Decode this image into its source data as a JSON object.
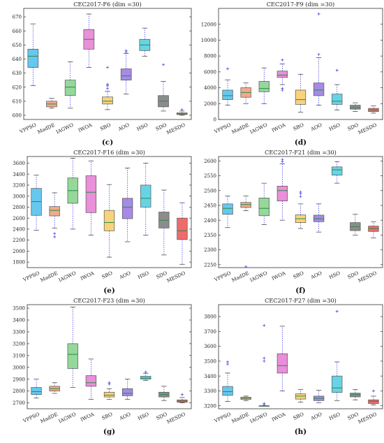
{
  "figure": {
    "colors": {
      "VPPSO": "#67c7ee",
      "MadDE": "#f2a98a",
      "IAGWO": "#95d89a",
      "IWOA": "#ea8fd9",
      "SBO": "#f7d37b",
      "AOO": "#a68ae6",
      "HSO": "#67d4e6",
      "SDO": "#8c8c8c",
      "MESDO": "#ef6b6b",
      "median": "#2a8a4a",
      "whisker": "#4a4ae0",
      "outlier": "#4a4ae0"
    }
  },
  "chart_data": [
    {
      "type": "box",
      "title": "CEC2017-F6 (dim =30)",
      "panel_label": "(c)",
      "categories": [
        "VPPSO",
        "MadDE",
        "IAGWO",
        "IWOA",
        "SBO",
        "AOO",
        "HSO",
        "SDO",
        "MESDO"
      ],
      "ylim": [
        597,
        676
      ],
      "yticks": [
        600,
        610,
        620,
        630,
        640,
        650,
        660,
        670
      ],
      "boxes": [
        {
          "min": 621,
          "q1": 634,
          "median": 642,
          "q3": 647,
          "max": 665,
          "outliers": []
        },
        {
          "min": 605,
          "q1": 606,
          "median": 608,
          "q3": 610,
          "max": 612,
          "outliers": []
        },
        {
          "min": 605,
          "q1": 614,
          "median": 620,
          "q3": 625,
          "max": 638,
          "outliers": []
        },
        {
          "min": 634,
          "q1": 647,
          "median": 654,
          "q3": 661,
          "max": 672,
          "outliers": []
        },
        {
          "min": 604,
          "q1": 608,
          "median": 610,
          "q3": 613,
          "max": 617,
          "outliers": [
            619,
            621,
            622,
            634
          ]
        },
        {
          "min": 615,
          "q1": 625,
          "median": 628,
          "q3": 633,
          "max": 644,
          "outliers": [
            645,
            646
          ]
        },
        {
          "min": 642,
          "q1": 646,
          "median": 650,
          "q3": 654,
          "max": 662,
          "outliers": []
        },
        {
          "min": 603,
          "q1": 606,
          "median": 610,
          "q3": 614,
          "max": 624,
          "outliers": [
            636
          ]
        },
        {
          "min": 600,
          "q1": 600.5,
          "median": 601,
          "q3": 601.7,
          "max": 603,
          "outliers": [
            604
          ]
        }
      ]
    },
    {
      "type": "box",
      "title": "CEC2017-F9 (dim =30)",
      "panel_label": "(d)",
      "categories": [
        "VPPSO",
        "MadDE",
        "IAGWO",
        "IWOA",
        "SBO",
        "AOO",
        "HSO",
        "SDO",
        "MESDO"
      ],
      "ylim": [
        0,
        14000
      ],
      "yticks": [
        0,
        2000,
        4000,
        6000,
        8000,
        10000,
        12000
      ],
      "boxes": [
        {
          "min": 1800,
          "q1": 2500,
          "median": 3000,
          "q3": 3700,
          "max": 5000,
          "outliers": [
            6400
          ]
        },
        {
          "min": 2000,
          "q1": 2800,
          "median": 3400,
          "q3": 4000,
          "max": 4600,
          "outliers": []
        },
        {
          "min": 2000,
          "q1": 3500,
          "median": 3900,
          "q3": 4800,
          "max": 6500,
          "outliers": []
        },
        {
          "min": 4400,
          "q1": 5300,
          "median": 5600,
          "q3": 6100,
          "max": 7000,
          "outliers": [
            3700,
            3900,
            7500
          ]
        },
        {
          "min": 900,
          "q1": 1900,
          "median": 2500,
          "q3": 3700,
          "max": 5700,
          "outliers": []
        },
        {
          "min": 1800,
          "q1": 3000,
          "median": 3700,
          "q3": 4600,
          "max": 7800,
          "outliers": [
            8200,
            13300
          ]
        },
        {
          "min": 1200,
          "q1": 1900,
          "median": 2300,
          "q3": 3200,
          "max": 4400,
          "outliers": [
            6200
          ]
        },
        {
          "min": 1000,
          "q1": 1300,
          "median": 1500,
          "q3": 1800,
          "max": 2100,
          "outliers": []
        },
        {
          "min": 800,
          "q1": 1000,
          "median": 1200,
          "q3": 1400,
          "max": 1700,
          "outliers": []
        }
      ]
    },
    {
      "type": "box",
      "title": "CEC2017-F16 (dim =30)",
      "panel_label": "(e)",
      "categories": [
        "VPPSO",
        "MadDE",
        "IAGWO",
        "IWOA",
        "SBO",
        "AOO",
        "HSO",
        "SDO",
        "MESDO"
      ],
      "ylim": [
        1700,
        3720
      ],
      "yticks": [
        1800,
        2000,
        2200,
        2400,
        2600,
        2800,
        3000,
        3200,
        3400,
        3600
      ],
      "boxes": [
        {
          "min": 2380,
          "q1": 2650,
          "median": 2900,
          "q3": 3140,
          "max": 3380,
          "outliers": []
        },
        {
          "min": 2420,
          "q1": 2640,
          "median": 2740,
          "q3": 2810,
          "max": 3060,
          "outliers": [
            2260,
            2320
          ]
        },
        {
          "min": 2400,
          "q1": 2870,
          "median": 3100,
          "q3": 3330,
          "max": 3690,
          "outliers": []
        },
        {
          "min": 2290,
          "q1": 2700,
          "median": 3070,
          "q3": 3370,
          "max": 3640,
          "outliers": []
        },
        {
          "min": 1890,
          "q1": 2370,
          "median": 2520,
          "q3": 2740,
          "max": 3210,
          "outliers": []
        },
        {
          "min": 2170,
          "q1": 2590,
          "median": 2800,
          "q3": 2960,
          "max": 3510,
          "outliers": []
        },
        {
          "min": 2290,
          "q1": 2800,
          "median": 2960,
          "q3": 3200,
          "max": 3600,
          "outliers": []
        },
        {
          "min": 1930,
          "q1": 2420,
          "median": 2560,
          "q3": 2710,
          "max": 3110,
          "outliers": []
        },
        {
          "min": 1760,
          "q1": 2210,
          "median": 2370,
          "q3": 2600,
          "max": 2880,
          "outliers": []
        }
      ]
    },
    {
      "type": "box",
      "title": "CEC2017-F21 (dim =30)",
      "panel_label": "(f)",
      "categories": [
        "VPPSO",
        "MadDE",
        "IAGWO",
        "IWOA",
        "SBO",
        "AOO",
        "HSO",
        "SDO",
        "MESDO"
      ],
      "ylim": [
        2240,
        2615
      ],
      "yticks": [
        2250,
        2300,
        2350,
        2400,
        2450,
        2500,
        2550,
        2600
      ],
      "boxes": [
        {
          "min": 2375,
          "q1": 2420,
          "median": 2440,
          "q3": 2455,
          "max": 2482,
          "outliers": []
        },
        {
          "min": 2432,
          "q1": 2443,
          "median": 2453,
          "q3": 2460,
          "max": 2482,
          "outliers": [
            2243
          ]
        },
        {
          "min": 2385,
          "q1": 2415,
          "median": 2440,
          "q3": 2475,
          "max": 2525,
          "outliers": []
        },
        {
          "min": 2400,
          "q1": 2465,
          "median": 2500,
          "q3": 2515,
          "max": 2590,
          "outliers": [
            2598,
            2605
          ]
        },
        {
          "min": 2372,
          "q1": 2392,
          "median": 2405,
          "q3": 2418,
          "max": 2455,
          "outliers": [
            2480,
            2490,
            2495
          ]
        },
        {
          "min": 2360,
          "q1": 2395,
          "median": 2405,
          "q3": 2417,
          "max": 2455,
          "outliers": []
        },
        {
          "min": 2525,
          "q1": 2552,
          "median": 2570,
          "q3": 2580,
          "max": 2598,
          "outliers": []
        },
        {
          "min": 2350,
          "q1": 2365,
          "median": 2378,
          "q3": 2392,
          "max": 2420,
          "outliers": []
        },
        {
          "min": 2340,
          "q1": 2362,
          "median": 2372,
          "q3": 2380,
          "max": 2395,
          "outliers": []
        }
      ]
    },
    {
      "type": "box",
      "title": "CEC2017-F23 (dim =30)",
      "panel_label": "(g)",
      "categories": [
        "VPPSO",
        "MadDE",
        "IAGWO",
        "IWOA",
        "SBO",
        "AOO",
        "HSO",
        "SDO",
        "MESDO"
      ],
      "ylim": [
        2650,
        3530
      ],
      "yticks": [
        2700,
        2800,
        2900,
        3000,
        3100,
        3200,
        3300,
        3400,
        3500
      ],
      "boxes": [
        {
          "min": 2740,
          "q1": 2770,
          "median": 2795,
          "q3": 2830,
          "max": 2900,
          "outliers": []
        },
        {
          "min": 2780,
          "q1": 2800,
          "median": 2820,
          "q3": 2840,
          "max": 2870,
          "outliers": []
        },
        {
          "min": 2830,
          "q1": 2990,
          "median": 3110,
          "q3": 3200,
          "max": 3510,
          "outliers": []
        },
        {
          "min": 2730,
          "q1": 2840,
          "median": 2870,
          "q3": 2930,
          "max": 3070,
          "outliers": []
        },
        {
          "min": 2730,
          "q1": 2750,
          "median": 2765,
          "q3": 2790,
          "max": 2820,
          "outliers": [
            2860,
            2870
          ]
        },
        {
          "min": 2730,
          "q1": 2760,
          "median": 2780,
          "q3": 2820,
          "max": 2900,
          "outliers": []
        },
        {
          "min": 2890,
          "q1": 2900,
          "median": 2910,
          "q3": 2925,
          "max": 2950,
          "outliers": [
            2960
          ]
        },
        {
          "min": 2720,
          "q1": 2750,
          "median": 2770,
          "q3": 2790,
          "max": 2840,
          "outliers": []
        },
        {
          "min": 2700,
          "q1": 2705,
          "median": 2715,
          "q3": 2725,
          "max": 2745,
          "outliers": [
            2770
          ]
        }
      ]
    },
    {
      "type": "box",
      "title": "CEC2017-F27 (dim =30)",
      "panel_label": "(h)",
      "categories": [
        "VPPSO",
        "MadDE",
        "IAGWO",
        "IWOA",
        "SBO",
        "AOO",
        "HSO",
        "SDO",
        "MESDO"
      ],
      "ylim": [
        3180,
        3880
      ],
      "yticks": [
        3200,
        3300,
        3400,
        3500,
        3600,
        3700,
        3800
      ],
      "boxes": [
        {
          "min": 3230,
          "q1": 3270,
          "median": 3295,
          "q3": 3330,
          "max": 3420,
          "outliers": [
            3480,
            3495
          ]
        },
        {
          "min": 3235,
          "q1": 3243,
          "median": 3250,
          "q3": 3258,
          "max": 3265,
          "outliers": []
        },
        {
          "min": 3200,
          "q1": 3200,
          "median": 3200,
          "q3": 3200,
          "max": 3200,
          "outliers": [
            3205,
            3215,
            3500,
            3520,
            3740
          ]
        },
        {
          "min": 3300,
          "q1": 3420,
          "median": 3470,
          "q3": 3550,
          "max": 3735,
          "outliers": []
        },
        {
          "min": 3225,
          "q1": 3245,
          "median": 3265,
          "q3": 3280,
          "max": 3310,
          "outliers": []
        },
        {
          "min": 3220,
          "q1": 3235,
          "median": 3250,
          "q3": 3265,
          "max": 3305,
          "outliers": []
        },
        {
          "min": 3235,
          "q1": 3290,
          "median": 3320,
          "q3": 3400,
          "max": 3495,
          "outliers": [
            3835
          ]
        },
        {
          "min": 3240,
          "q1": 3260,
          "median": 3275,
          "q3": 3285,
          "max": 3310,
          "outliers": []
        },
        {
          "min": 3205,
          "q1": 3215,
          "median": 3230,
          "q3": 3240,
          "max": 3265,
          "outliers": [
            3300
          ]
        }
      ]
    }
  ]
}
